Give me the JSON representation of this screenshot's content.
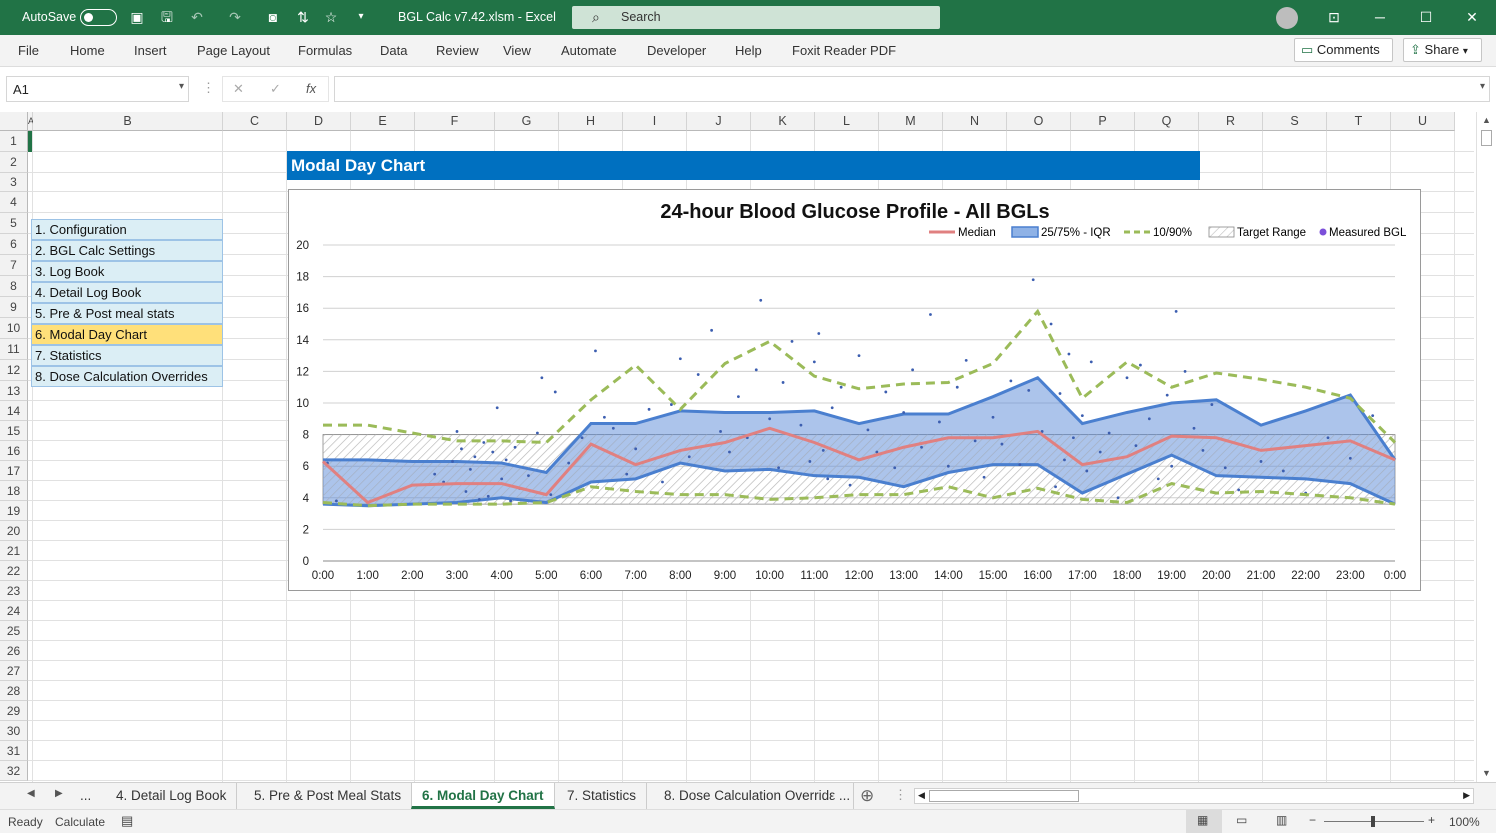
{
  "titlebar": {
    "autosave": "AutoSave",
    "file_title": "BGL Calc v7.42.xlsm  -  Excel",
    "search_placeholder": "Search"
  },
  "menu": [
    "File",
    "Home",
    "Insert",
    "Page Layout",
    "Formulas",
    "Data",
    "Review",
    "View",
    "Automate",
    "Developer",
    "Help",
    "Foxit Reader PDF"
  ],
  "ribbon_right": {
    "comments": "Comments",
    "share": "Share"
  },
  "formula": {
    "namebox": "A1",
    "fx": "fx",
    "value": ""
  },
  "columns": [
    "A",
    "B",
    "C",
    "D",
    "E",
    "F",
    "G",
    "H",
    "I",
    "J",
    "K",
    "L",
    "M",
    "N",
    "O",
    "P",
    "Q",
    "R",
    "S",
    "T",
    "U"
  ],
  "rows": [
    "1",
    "2",
    "3",
    "4",
    "5",
    "6",
    "7",
    "8",
    "9",
    "10",
    "11",
    "12",
    "13",
    "14",
    "15",
    "16",
    "17",
    "18",
    "19",
    "20",
    "21",
    "22",
    "23",
    "24",
    "25",
    "26",
    "27",
    "28",
    "29",
    "30",
    "31",
    "32"
  ],
  "nav_items": [
    "1. Configuration",
    "2. BGL Calc Settings",
    "3. Log Book",
    "4. Detail Log Book",
    "5. Pre & Post meal stats",
    "6. Modal Day Chart",
    "7. Statistics",
    "8. Dose Calculation Overrides"
  ],
  "nav_active_index": 5,
  "colors": {
    "excel_green": "#217346",
    "title_blue": "#0070c0",
    "nav_bg": "#dbeef5",
    "nav_active": "#ffe07a",
    "median": "#e08080",
    "iqr": "#4a7fcf",
    "p1090": "#9bbb59",
    "points": "#3c5eb0"
  },
  "sheet_title": "Modal Day Chart",
  "chart_data": {
    "type": "area",
    "title": "24-hour Blood Glucose Profile - All BGLs",
    "legend": [
      "Median",
      "25/75% - IQR",
      "10/90%",
      "Target Range",
      "Measured BGL"
    ],
    "legend_position": "top-right",
    "ylim": [
      0,
      20
    ],
    "yticks": [
      "0",
      "2",
      "4",
      "6",
      "8",
      "10",
      "12",
      "14",
      "16",
      "18",
      "20"
    ],
    "xticks": [
      "0:00",
      "1:00",
      "2:00",
      "3:00",
      "4:00",
      "5:00",
      "6:00",
      "7:00",
      "8:00",
      "9:00",
      "10:00",
      "11:00",
      "12:00",
      "13:00",
      "14:00",
      "15:00",
      "16:00",
      "17:00",
      "18:00",
      "19:00",
      "20:00",
      "21:00",
      "22:00",
      "23:00",
      "0:00"
    ],
    "target_range": [
      3.6,
      8.0
    ],
    "x": [
      0,
      1,
      2,
      3,
      4,
      5,
      6,
      7,
      8,
      9,
      10,
      11,
      12,
      13,
      14,
      15,
      16,
      17,
      18,
      19,
      20,
      21,
      22,
      23,
      24
    ],
    "series": [
      {
        "name": "Median",
        "values": [
          6.3,
          3.7,
          4.8,
          4.9,
          4.9,
          4.2,
          7.4,
          6.1,
          7.0,
          7.5,
          8.4,
          7.5,
          6.4,
          7.2,
          7.8,
          7.8,
          8.2,
          6.1,
          6.6,
          7.9,
          7.8,
          7.0,
          7.3,
          7.6,
          6.4
        ]
      },
      {
        "name": "P25",
        "values": [
          3.6,
          3.5,
          3.6,
          3.7,
          4.0,
          3.7,
          5.0,
          5.2,
          6.2,
          5.7,
          5.8,
          5.4,
          5.3,
          4.7,
          5.6,
          6.1,
          6.1,
          4.3,
          5.5,
          6.7,
          5.4,
          5.3,
          5.2,
          4.9,
          3.6
        ]
      },
      {
        "name": "P75",
        "values": [
          6.4,
          6.4,
          6.3,
          6.3,
          6.2,
          5.6,
          8.7,
          8.7,
          9.5,
          9.4,
          9.4,
          9.5,
          8.7,
          9.3,
          9.3,
          10.4,
          11.6,
          8.7,
          9.4,
          10.0,
          10.2,
          8.6,
          9.5,
          10.5,
          6.4
        ]
      },
      {
        "name": "P10",
        "values": [
          3.7,
          3.5,
          3.6,
          3.6,
          3.6,
          3.7,
          4.7,
          4.4,
          4.2,
          4.2,
          3.9,
          4.0,
          4.2,
          4.2,
          4.7,
          4.0,
          4.6,
          3.9,
          3.7,
          4.9,
          4.3,
          4.4,
          4.2,
          4.0,
          3.6
        ]
      },
      {
        "name": "P90",
        "values": [
          8.6,
          8.6,
          8.1,
          7.6,
          7.6,
          7.5,
          10.2,
          12.4,
          9.6,
          12.5,
          13.9,
          11.7,
          10.9,
          11.2,
          11.3,
          12.5,
          15.8,
          10.3,
          12.6,
          11.0,
          11.9,
          11.5,
          11.0,
          10.3,
          7.5
        ]
      }
    ],
    "measured_points": [
      [
        0.1,
        6.2
      ],
      [
        0.3,
        3.8
      ],
      [
        2.5,
        5.5
      ],
      [
        2.7,
        5.0
      ],
      [
        2.9,
        6.3
      ],
      [
        3.0,
        8.2
      ],
      [
        3.1,
        7.1
      ],
      [
        3.2,
        4.4
      ],
      [
        3.3,
        5.8
      ],
      [
        3.4,
        6.6
      ],
      [
        3.5,
        3.9
      ],
      [
        3.6,
        7.5
      ],
      [
        3.7,
        4.1
      ],
      [
        3.8,
        6.9
      ],
      [
        3.9,
        9.7
      ],
      [
        4.0,
        5.2
      ],
      [
        4.1,
        6.4
      ],
      [
        4.2,
        3.8
      ],
      [
        4.3,
        7.2
      ],
      [
        4.4,
        4.6
      ],
      [
        4.6,
        5.4
      ],
      [
        4.8,
        8.1
      ],
      [
        5.1,
        4.2
      ],
      [
        4.9,
        11.6
      ],
      [
        5.2,
        10.7
      ],
      [
        5.5,
        6.2
      ],
      [
        5.8,
        7.8
      ],
      [
        6.1,
        13.3
      ],
      [
        6.3,
        9.1
      ],
      [
        6.5,
        8.4
      ],
      [
        6.8,
        5.5
      ],
      [
        7.0,
        7.1
      ],
      [
        7.3,
        9.6
      ],
      [
        7.6,
        5.0
      ],
      [
        7.8,
        9.9
      ],
      [
        8.0,
        12.8
      ],
      [
        8.2,
        6.6
      ],
      [
        8.4,
        11.8
      ],
      [
        8.7,
        14.6
      ],
      [
        8.9,
        8.2
      ],
      [
        9.1,
        6.9
      ],
      [
        9.3,
        10.4
      ],
      [
        9.5,
        7.8
      ],
      [
        9.7,
        12.1
      ],
      [
        9.8,
        16.5
      ],
      [
        10.0,
        9.0
      ],
      [
        10.2,
        5.9
      ],
      [
        10.3,
        11.3
      ],
      [
        10.5,
        13.9
      ],
      [
        10.7,
        8.6
      ],
      [
        10.9,
        6.3
      ],
      [
        11.0,
        12.6
      ],
      [
        11.1,
        14.4
      ],
      [
        11.2,
        7.0
      ],
      [
        11.3,
        5.2
      ],
      [
        11.4,
        9.7
      ],
      [
        11.6,
        11.0
      ],
      [
        11.8,
        4.8
      ],
      [
        12.0,
        13.0
      ],
      [
        12.2,
        8.3
      ],
      [
        12.4,
        6.9
      ],
      [
        12.6,
        10.7
      ],
      [
        12.8,
        5.9
      ],
      [
        13.0,
        9.4
      ],
      [
        13.2,
        12.1
      ],
      [
        13.4,
        7.2
      ],
      [
        13.6,
        15.6
      ],
      [
        13.8,
        8.8
      ],
      [
        14.0,
        6.0
      ],
      [
        14.2,
        11.0
      ],
      [
        14.4,
        12.7
      ],
      [
        14.6,
        7.6
      ],
      [
        14.8,
        5.3
      ],
      [
        15.0,
        9.1
      ],
      [
        15.2,
        7.4
      ],
      [
        15.4,
        11.4
      ],
      [
        15.6,
        6.1
      ],
      [
        15.8,
        10.8
      ],
      [
        15.9,
        17.8
      ],
      [
        16.1,
        8.2
      ],
      [
        16.3,
        15.0
      ],
      [
        16.4,
        4.7
      ],
      [
        16.5,
        10.6
      ],
      [
        16.6,
        6.4
      ],
      [
        16.7,
        13.1
      ],
      [
        16.8,
        7.8
      ],
      [
        17.0,
        9.2
      ],
      [
        17.1,
        5.7
      ],
      [
        17.2,
        12.6
      ],
      [
        17.4,
        6.9
      ],
      [
        17.6,
        8.1
      ],
      [
        17.8,
        4.0
      ],
      [
        18.0,
        11.6
      ],
      [
        18.2,
        7.3
      ],
      [
        18.3,
        12.4
      ],
      [
        18.5,
        9.0
      ],
      [
        18.7,
        5.2
      ],
      [
        18.9,
        10.5
      ],
      [
        19.0,
        6.0
      ],
      [
        19.1,
        15.8
      ],
      [
        19.3,
        12.0
      ],
      [
        19.5,
        8.4
      ],
      [
        19.7,
        7.0
      ],
      [
        19.9,
        9.9
      ],
      [
        20.2,
        5.9
      ],
      [
        20.5,
        4.5
      ],
      [
        21.0,
        6.3
      ],
      [
        21.5,
        5.7
      ],
      [
        22.0,
        4.3
      ],
      [
        22.5,
        7.8
      ],
      [
        23.0,
        6.5
      ],
      [
        23.5,
        9.2
      ]
    ]
  },
  "sheet_tabs": [
    "...",
    "4. Detail Log Book",
    "5. Pre & Post Meal Stats",
    "6. Modal Day Chart",
    "7. Statistics",
    "8. Dose Calculation Overridε ..."
  ],
  "active_tab_index": 3,
  "status": {
    "ready": "Ready",
    "calculate": "Calculate",
    "zoom": "100%"
  }
}
